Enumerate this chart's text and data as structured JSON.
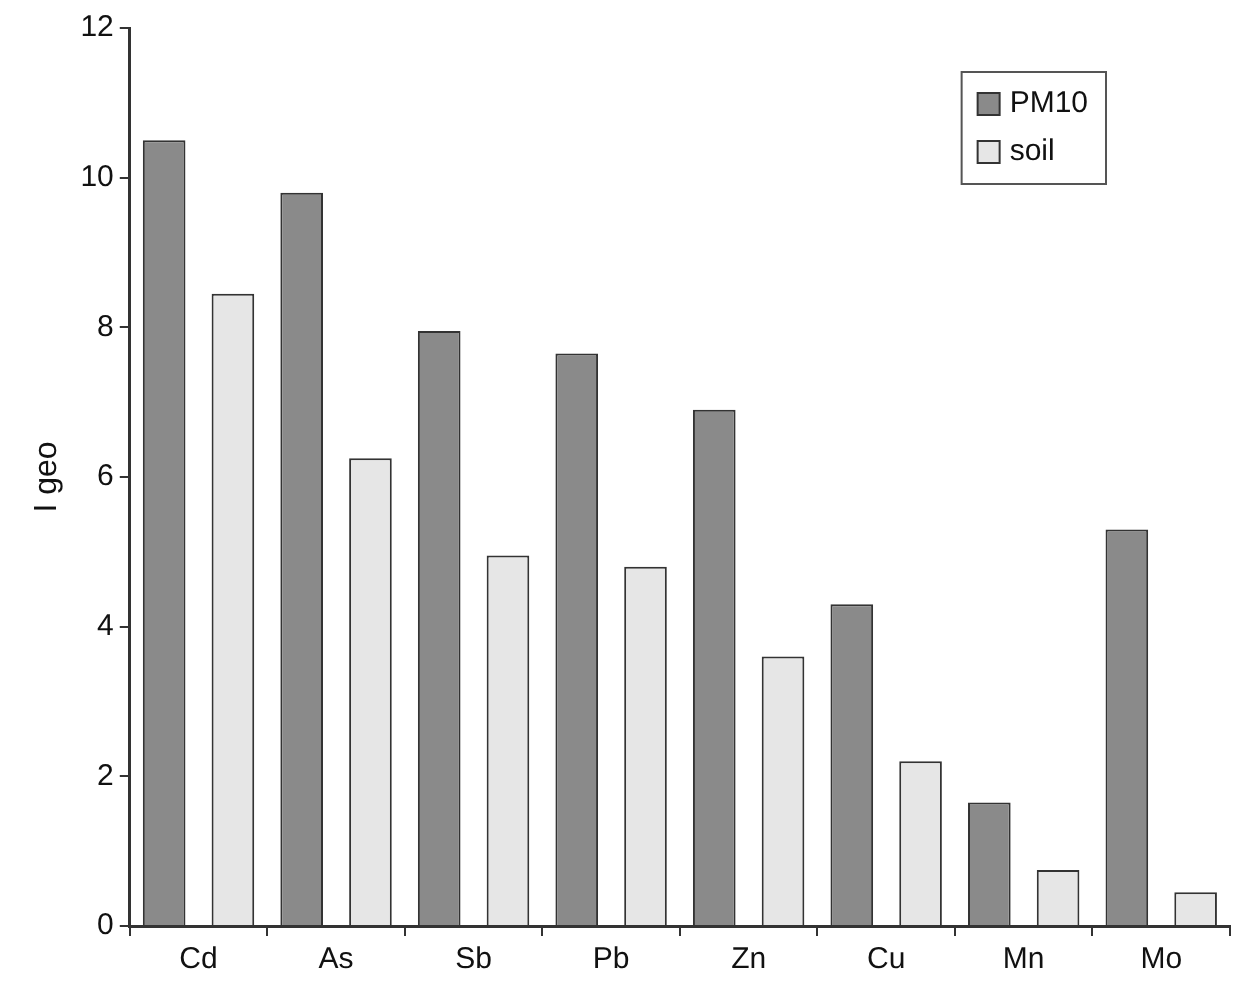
{
  "chart_data": {
    "type": "bar",
    "ylabel": "I geo",
    "categories": [
      "Cd",
      "As",
      "Sb",
      "Pb",
      "Zn",
      "Cu",
      "Mn",
      "Mo"
    ],
    "series": [
      {
        "name": "PM10",
        "color": "#8a8a8a",
        "values": [
          10.5,
          9.8,
          7.95,
          7.65,
          6.9,
          4.3,
          1.65,
          5.3
        ]
      },
      {
        "name": "soil",
        "color": "#e6e6e6",
        "values": [
          8.45,
          6.25,
          4.95,
          4.8,
          3.6,
          2.2,
          0.75,
          0.45
        ]
      }
    ],
    "ylim": [
      0,
      12
    ],
    "yticks": [
      0,
      2,
      4,
      6,
      8,
      10,
      12
    ],
    "grid": false,
    "legend": "top right"
  }
}
